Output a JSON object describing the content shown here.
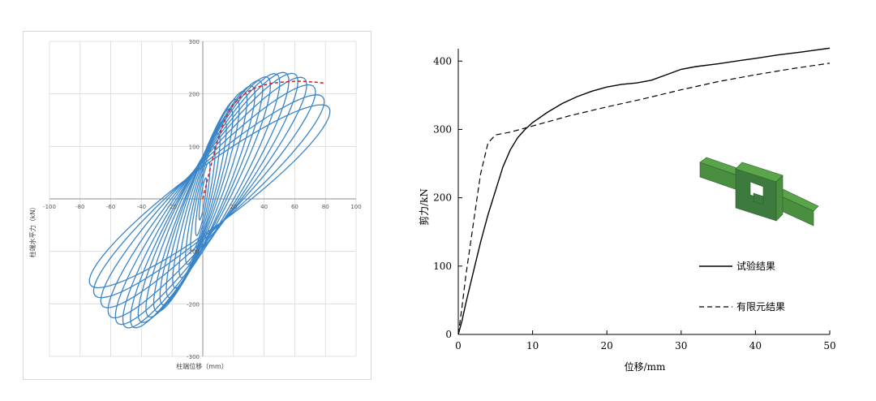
{
  "chart_data": [
    {
      "type": "line",
      "xlabel": "柱端位移（mm）",
      "ylabel": "柱端水平力（kN）",
      "xlim": [
        -100,
        100
      ],
      "ylim": [
        -300,
        300
      ],
      "x_ticks": [
        -100,
        -80,
        -60,
        -40,
        -20,
        0,
        20,
        40,
        60,
        80,
        100
      ],
      "y_ticks": [
        -300,
        -200,
        -100,
        100,
        200,
        300
      ],
      "grid": true,
      "hysteresis_peaks": [
        {
          "x": 2,
          "y": 40
        },
        {
          "x": 4,
          "y": 70
        },
        {
          "x": 7,
          "y": 100
        },
        {
          "x": 10,
          "y": 125
        },
        {
          "x": 14,
          "y": 150
        },
        {
          "x": 18,
          "y": 172
        },
        {
          "x": 22,
          "y": 190
        },
        {
          "x": 27,
          "y": 205
        },
        {
          "x": 32,
          "y": 215
        },
        {
          "x": 37,
          "y": 225
        },
        {
          "x": 42,
          "y": 232
        },
        {
          "x": 48,
          "y": 238
        },
        {
          "x": 54,
          "y": 240
        },
        {
          "x": 60,
          "y": 238
        },
        {
          "x": 66,
          "y": 230
        },
        {
          "x": 72,
          "y": 215
        },
        {
          "x": 78,
          "y": 195
        },
        {
          "x": 82,
          "y": 175
        }
      ],
      "hysteresis_valleys": [
        {
          "x": -2,
          "y": -40
        },
        {
          "x": -4,
          "y": -70
        },
        {
          "x": -7,
          "y": -100
        },
        {
          "x": -10,
          "y": -125
        },
        {
          "x": -14,
          "y": -150
        },
        {
          "x": -18,
          "y": -170
        },
        {
          "x": -22,
          "y": -188
        },
        {
          "x": -26,
          "y": -202
        },
        {
          "x": -30,
          "y": -215
        },
        {
          "x": -35,
          "y": -225
        },
        {
          "x": -40,
          "y": -235
        },
        {
          "x": -45,
          "y": -245
        },
        {
          "x": -50,
          "y": -245
        },
        {
          "x": -55,
          "y": -238
        },
        {
          "x": -60,
          "y": -225
        },
        {
          "x": -65,
          "y": -205
        },
        {
          "x": -70,
          "y": -185
        },
        {
          "x": -73,
          "y": -165
        }
      ],
      "envelope": [
        {
          "x": 0,
          "y": 0
        },
        {
          "x": 5,
          "y": 60
        },
        {
          "x": 10,
          "y": 115
        },
        {
          "x": 15,
          "y": 155
        },
        {
          "x": 20,
          "y": 180
        },
        {
          "x": 25,
          "y": 195
        },
        {
          "x": 30,
          "y": 205
        },
        {
          "x": 35,
          "y": 212
        },
        {
          "x": 40,
          "y": 217
        },
        {
          "x": 45,
          "y": 220
        },
        {
          "x": 50,
          "y": 222
        },
        {
          "x": 55,
          "y": 223
        },
        {
          "x": 60,
          "y": 224
        },
        {
          "x": 65,
          "y": 224
        },
        {
          "x": 70,
          "y": 223
        },
        {
          "x": 75,
          "y": 222
        },
        {
          "x": 80,
          "y": 220
        }
      ],
      "colors": {
        "loops": "#3a85c8",
        "envelope": "#e02020",
        "grid": "#d9d9d9"
      }
    },
    {
      "type": "line",
      "xlabel": "位移/mm",
      "ylabel": "剪力/kN",
      "xlim": [
        0,
        50
      ],
      "ylim": [
        0,
        430
      ],
      "x_ticks": [
        0,
        10,
        20,
        30,
        40,
        50
      ],
      "y_ticks": [
        0,
        100,
        200,
        300,
        400
      ],
      "grid": false,
      "legend_position": "right",
      "series": [
        {
          "name": "试验结果",
          "style": "solid",
          "points": [
            [
              0,
              0
            ],
            [
              0.5,
              20
            ],
            [
              1,
              45
            ],
            [
              2,
              90
            ],
            [
              3,
              135
            ],
            [
              4,
              175
            ],
            [
              5,
              210
            ],
            [
              6,
              245
            ],
            [
              7,
              270
            ],
            [
              8,
              288
            ],
            [
              9,
              300
            ],
            [
              10,
              310
            ],
            [
              12,
              325
            ],
            [
              14,
              338
            ],
            [
              16,
              348
            ],
            [
              18,
              356
            ],
            [
              20,
              362
            ],
            [
              22,
              366
            ],
            [
              24,
              368
            ],
            [
              26,
              372
            ],
            [
              28,
              380
            ],
            [
              30,
              388
            ],
            [
              32,
              392
            ],
            [
              35,
              396
            ],
            [
              38,
              401
            ],
            [
              40,
              404
            ],
            [
              43,
              409
            ],
            [
              46,
              413
            ],
            [
              48,
              416
            ],
            [
              50,
              419
            ]
          ]
        },
        {
          "name": "有限元结果",
          "style": "dashed",
          "points": [
            [
              0,
              0
            ],
            [
              0.5,
              40
            ],
            [
              1,
              85
            ],
            [
              2,
              160
            ],
            [
              3,
              235
            ],
            [
              4,
              280
            ],
            [
              5,
              292
            ],
            [
              7,
              296
            ],
            [
              10,
              305
            ],
            [
              15,
              320
            ],
            [
              20,
              333
            ],
            [
              25,
              345
            ],
            [
              30,
              358
            ],
            [
              35,
              370
            ],
            [
              40,
              380
            ],
            [
              45,
              389
            ],
            [
              50,
              397
            ]
          ]
        }
      ],
      "inset_colors": {
        "dark": "#3d7a3d",
        "mid": "#4a8f3f",
        "light": "#5aa449"
      }
    }
  ]
}
